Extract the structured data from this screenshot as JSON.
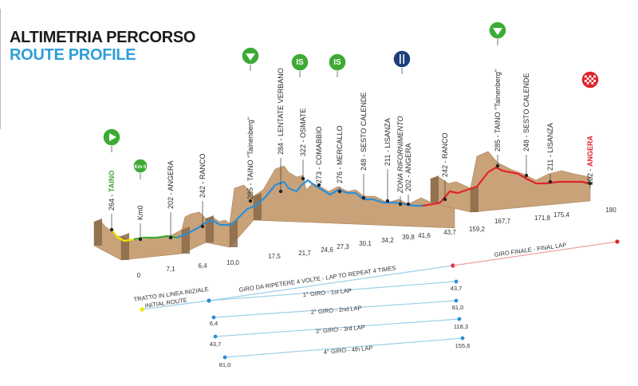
{
  "title": "ALTIMETRIA PERCORSO",
  "subtitle": "ROUTE PROFILE",
  "colors": {
    "yellow": "#f2e600",
    "green": "#3daa35",
    "blue": "#2b8fd6",
    "red": "#e0242b",
    "terrain": "#c9a27a",
    "terrain_dark": "#8b6a48"
  },
  "places": [
    {
      "text": "264 - TAINO",
      "hl": "TAINO",
      "hl_color": "#3daa35"
    },
    {
      "text": "Km0",
      "hl": "",
      "hl_color": ""
    },
    {
      "text": "202 - ANGERA",
      "hl": "",
      "hl_color": ""
    },
    {
      "text": "242 - RANCO",
      "hl": "",
      "hl_color": ""
    },
    {
      "text": "285 - TAINO \"Tainenberg\"",
      "hl": "",
      "hl_color": ""
    },
    {
      "text": "284 - LENTATE VERBANO",
      "hl": "",
      "hl_color": ""
    },
    {
      "text": "322 - OSMATE",
      "hl": "",
      "hl_color": ""
    },
    {
      "text": "273 - COMABBIO",
      "hl": "",
      "hl_color": ""
    },
    {
      "text": "276 - MERCALLO",
      "hl": "",
      "hl_color": ""
    },
    {
      "text": "248 - SESTO CALENDE",
      "hl": "",
      "hl_color": ""
    },
    {
      "text": "211 - LISANZA",
      "hl": "",
      "hl_color": ""
    },
    {
      "text": "ZONA RIFORNIMENTO",
      "hl": "ZONA RIFORNIMENTO",
      "hl_color": "#2b8fd6"
    },
    {
      "text": "202 - ANGERA",
      "hl": "",
      "hl_color": ""
    },
    {
      "text": "242 - RANCO",
      "hl": "",
      "hl_color": ""
    },
    {
      "text": "285 - TAINO \"Tainenberg\"",
      "hl": "",
      "hl_color": ""
    },
    {
      "text": "248 - SESTO CALENDE",
      "hl": "",
      "hl_color": ""
    },
    {
      "text": "211 - LISANZA",
      "hl": "",
      "hl_color": ""
    },
    {
      "text": "202 - ANGERA",
      "hl": "ANGERA",
      "hl_color": "#e0242b"
    }
  ],
  "km_marks": [
    "0",
    "7,1",
    "6,4",
    "10,0",
    "17,5",
    "21,7",
    "24,6",
    "27,3",
    "30,1",
    "34,2",
    "39,8",
    "41,6",
    "43,7",
    "159,2",
    "167,7",
    "171,8",
    "175,4",
    "180"
  ],
  "icons": [
    {
      "name": "start-play-icon",
      "symbol": "play",
      "color": "#3daa35"
    },
    {
      "name": "km0-badge-icon",
      "symbol": "Km 0",
      "color": "#3daa35"
    },
    {
      "name": "gpm-triangle-icon",
      "symbol": "triangle",
      "color": "#3daa35"
    },
    {
      "name": "sprint-is-icon",
      "symbol": "IS",
      "color": "#3daa35"
    },
    {
      "name": "sprint-is-icon",
      "symbol": "IS",
      "color": "#3daa35"
    },
    {
      "name": "feed-zone-icon",
      "symbol": "feed",
      "color": "#1f3f7a"
    },
    {
      "name": "gpm-triangle-icon",
      "symbol": "triangle",
      "color": "#3daa35"
    },
    {
      "name": "finish-flag-icon",
      "symbol": "finish",
      "color": "#e0242b"
    }
  ],
  "laps": {
    "initial_it": "TRATTO IN LINEA INIZIALE",
    "initial_en": "INITIAL ROUTE",
    "repeat": "GIRO DA RIPETERE 4 VOLTE - LAP TO REPEAT 4 TIMES",
    "final": "GIRO FINALE - FINAL LAP",
    "lap_rows": [
      {
        "label": "1° GIRO - 1st LAP",
        "start": "",
        "end": "43,7"
      },
      {
        "label": "2° GIRO - 2nd LAP",
        "start": "6,4",
        "end": "81,0"
      },
      {
        "label": "3° GIRO - 3rd LAP",
        "start": "43,7",
        "end": "118,3"
      },
      {
        "label": "4° GIRO - 4th LAP",
        "start": "81,0",
        "end": "155,6"
      }
    ]
  }
}
